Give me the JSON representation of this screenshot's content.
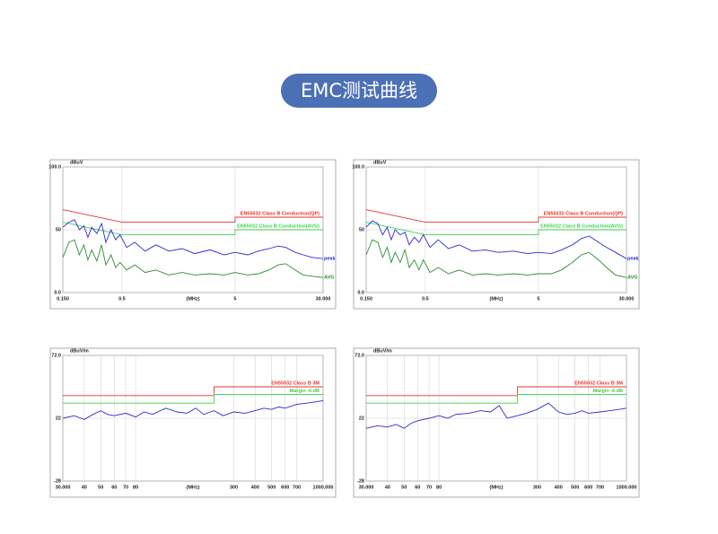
{
  "header": {
    "title": "EMC测试曲线"
  },
  "chart_data": [
    {
      "type": "line",
      "ylabel": "dBuV",
      "xlabel": "(MHz)",
      "log_x": true,
      "grid": true,
      "xlim": [
        0.15,
        30
      ],
      "xticks": [
        {
          "value": 0.15,
          "label": "0.150"
        },
        0.5,
        5,
        {
          "value": 30,
          "label": "30.000"
        }
      ],
      "ylim": [
        0,
        100
      ],
      "yticks": [
        {
          "value": 0,
          "label": "0.0"
        },
        50,
        {
          "value": 100,
          "label": "100.0"
        }
      ],
      "series": [
        {
          "name": "EN55032 Class B Conduction(QP)",
          "color": "#e8322f",
          "x": [
            0.15,
            0.5,
            5,
            5,
            30
          ],
          "values": [
            66,
            56,
            56,
            60,
            60
          ]
        },
        {
          "name": "EN55032 Class B Conduction(AVG)",
          "color": "#3fd14a",
          "x": [
            0.15,
            0.5,
            5,
            5,
            30
          ],
          "values": [
            56,
            46,
            46,
            50,
            50
          ]
        },
        {
          "name": "peak",
          "color": "#2b2bd6",
          "x": [
            0.15,
            0.17,
            0.19,
            0.21,
            0.23,
            0.25,
            0.27,
            0.3,
            0.33,
            0.36,
            0.4,
            0.44,
            0.48,
            0.55,
            0.65,
            0.8,
            1,
            1.3,
            1.7,
            2.2,
            3,
            4,
            5,
            6.5,
            8,
            10,
            12,
            14,
            17,
            20,
            24,
            30
          ],
          "values": [
            52,
            56,
            58,
            50,
            53,
            44,
            52,
            47,
            55,
            40,
            50,
            42,
            46,
            36,
            40,
            33,
            38,
            33,
            35,
            31,
            34,
            30,
            32,
            30,
            33,
            35,
            37,
            36,
            32,
            30,
            28,
            27
          ]
        },
        {
          "name": "AVG",
          "color": "#2e8b2e",
          "x": [
            0.15,
            0.17,
            0.19,
            0.21,
            0.23,
            0.25,
            0.27,
            0.3,
            0.33,
            0.36,
            0.4,
            0.44,
            0.48,
            0.55,
            0.65,
            0.8,
            1,
            1.3,
            1.7,
            2.2,
            3,
            4,
            5,
            6.5,
            8,
            10,
            12,
            14,
            17,
            20,
            24,
            30
          ],
          "values": [
            28,
            40,
            42,
            30,
            38,
            26,
            34,
            25,
            38,
            22,
            30,
            20,
            24,
            18,
            22,
            16,
            18,
            14,
            16,
            14,
            15,
            14,
            16,
            14,
            15,
            18,
            22,
            23,
            18,
            14,
            13,
            12
          ]
        }
      ]
    },
    {
      "type": "line",
      "ylabel": "dBuV",
      "xlabel": "(MHz)",
      "log_x": true,
      "grid": true,
      "xlim": [
        0.15,
        30
      ],
      "xticks": [
        {
          "value": 0.15,
          "label": "0.150"
        },
        0.5,
        5,
        {
          "value": 30,
          "label": "30.000"
        }
      ],
      "ylim": [
        0,
        100
      ],
      "yticks": [
        {
          "value": 0,
          "label": "0.0"
        },
        50,
        {
          "value": 100,
          "label": "100.0"
        }
      ],
      "series": [
        {
          "name": "EN55032 Class B Conduction(QP)",
          "color": "#e8322f",
          "x": [
            0.15,
            0.5,
            5,
            5,
            30
          ],
          "values": [
            66,
            56,
            56,
            60,
            60
          ]
        },
        {
          "name": "EN55032 Class B Conduction(AVG)",
          "color": "#3fd14a",
          "x": [
            0.15,
            0.5,
            5,
            5,
            30
          ],
          "values": [
            56,
            46,
            46,
            50,
            50
          ]
        },
        {
          "name": "peak",
          "color": "#2b2bd6",
          "x": [
            0.15,
            0.17,
            0.19,
            0.21,
            0.23,
            0.25,
            0.27,
            0.3,
            0.33,
            0.36,
            0.4,
            0.44,
            0.48,
            0.55,
            0.65,
            0.8,
            1,
            1.3,
            1.7,
            2.2,
            3,
            4,
            5,
            6.5,
            8,
            10,
            12,
            14,
            17,
            20,
            24,
            30
          ],
          "values": [
            52,
            57,
            55,
            46,
            52,
            42,
            50,
            46,
            48,
            38,
            44,
            40,
            46,
            36,
            42,
            35,
            38,
            33,
            34,
            32,
            33,
            31,
            32,
            31,
            34,
            38,
            43,
            45,
            40,
            36,
            32,
            27
          ]
        },
        {
          "name": "AVG",
          "color": "#2e8b2e",
          "x": [
            0.15,
            0.17,
            0.19,
            0.21,
            0.23,
            0.25,
            0.27,
            0.3,
            0.33,
            0.36,
            0.4,
            0.44,
            0.48,
            0.55,
            0.65,
            0.8,
            1,
            1.3,
            1.7,
            2.2,
            3,
            4,
            5,
            6.5,
            8,
            10,
            12,
            14,
            17,
            20,
            24,
            30
          ],
          "values": [
            30,
            42,
            40,
            28,
            36,
            24,
            32,
            24,
            34,
            20,
            26,
            18,
            26,
            16,
            20,
            15,
            18,
            14,
            15,
            14,
            15,
            14,
            15,
            15,
            18,
            24,
            30,
            32,
            26,
            20,
            14,
            12
          ]
        }
      ]
    },
    {
      "type": "line",
      "ylabel": "dBuV/m",
      "xlabel": "(MHz)",
      "log_x": true,
      "grid": true,
      "xlim": [
        30,
        1000
      ],
      "xticks": [
        {
          "value": 30,
          "label": "30.000"
        },
        40,
        50,
        60,
        70,
        80,
        300,
        400,
        500,
        600,
        700,
        {
          "value": 1000,
          "label": "1000.000"
        }
      ],
      "ylim": [
        -28,
        72
      ],
      "yticks": [
        {
          "value": -28,
          "label": "-28"
        },
        22,
        {
          "value": 72,
          "label": "72.0"
        }
      ],
      "series": [
        {
          "name": "EN55032 Class B 3M",
          "color": "#e8322f",
          "x": [
            30,
            230,
            230,
            1000
          ],
          "values": [
            40,
            40,
            47,
            47
          ]
        },
        {
          "name": "Margin -6 dB",
          "color": "#3fd14a",
          "x": [
            30,
            230,
            230,
            1000
          ],
          "values": [
            34,
            34,
            41,
            41
          ]
        },
        {
          "color": "#2b2bd6",
          "x": [
            30,
            35,
            40,
            45,
            50,
            55,
            60,
            70,
            80,
            90,
            100,
            120,
            140,
            160,
            180,
            200,
            230,
            260,
            300,
            350,
            400,
            450,
            500,
            550,
            600,
            700,
            800,
            900,
            1000
          ],
          "values": [
            22,
            24,
            21,
            25,
            28,
            25,
            24,
            26,
            23,
            27,
            25,
            30,
            27,
            26,
            30,
            25,
            28,
            24,
            27,
            26,
            28,
            30,
            29,
            31,
            30,
            33,
            34,
            35,
            36
          ]
        }
      ]
    },
    {
      "type": "line",
      "ylabel": "dBuV/m",
      "xlabel": "(MHz)",
      "log_x": true,
      "grid": true,
      "xlim": [
        30,
        1000
      ],
      "xticks": [
        {
          "value": 30,
          "label": "30.000"
        },
        40,
        50,
        60,
        70,
        80,
        300,
        400,
        500,
        600,
        700,
        {
          "value": 1000,
          "label": "1000.000"
        }
      ],
      "ylim": [
        -28,
        72
      ],
      "yticks": [
        {
          "value": -28,
          "label": "-28"
        },
        22,
        {
          "value": 72,
          "label": "72.0"
        }
      ],
      "series": [
        {
          "name": "EN55032 Class B 3M",
          "color": "#e8322f",
          "x": [
            30,
            230,
            230,
            1000
          ],
          "values": [
            40,
            40,
            47,
            47
          ]
        },
        {
          "name": "Margin -6 dB",
          "color": "#3fd14a",
          "x": [
            30,
            230,
            230,
            1000
          ],
          "values": [
            34,
            34,
            41,
            41
          ]
        },
        {
          "color": "#2b2bd6",
          "x": [
            30,
            35,
            40,
            45,
            50,
            55,
            60,
            70,
            80,
            90,
            100,
            120,
            140,
            160,
            180,
            200,
            230,
            260,
            300,
            350,
            400,
            450,
            500,
            550,
            600,
            700,
            800,
            900,
            1000
          ],
          "values": [
            14,
            16,
            15,
            17,
            14,
            18,
            20,
            22,
            24,
            22,
            25,
            26,
            28,
            27,
            32,
            22,
            24,
            26,
            29,
            34,
            27,
            25,
            26,
            28,
            26,
            27,
            28,
            29,
            30
          ]
        }
      ]
    }
  ]
}
